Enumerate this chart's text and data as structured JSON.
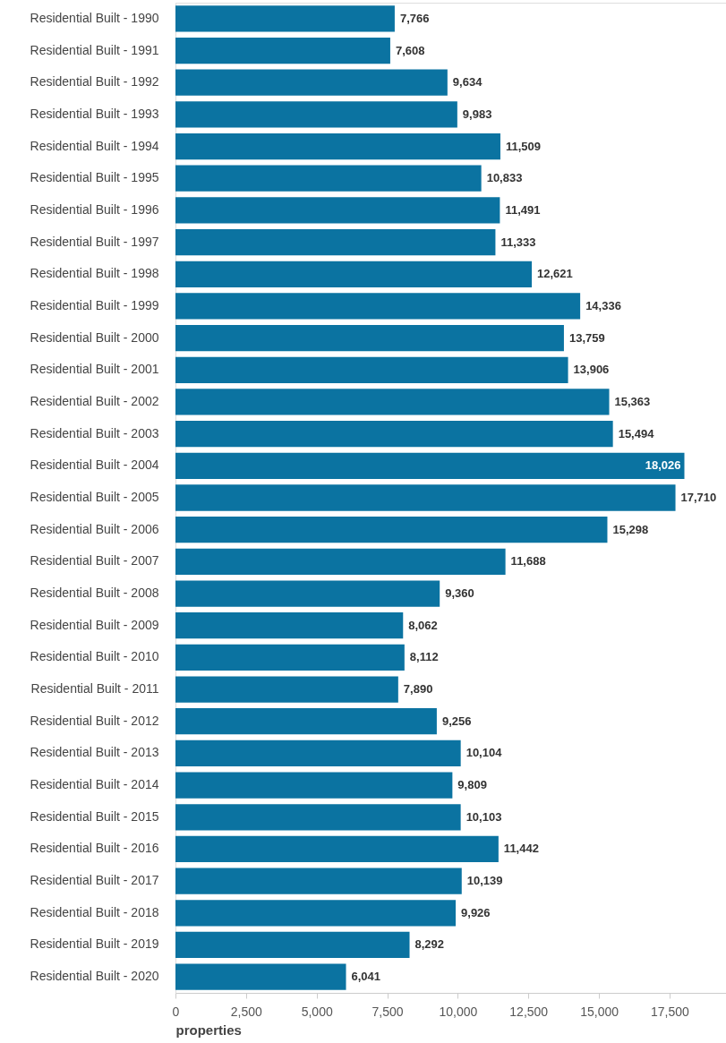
{
  "chart_data": {
    "type": "bar",
    "orientation": "horizontal",
    "xlabel": "properties",
    "color": "#0b73a1",
    "categories": [
      "Residential Built - 1990",
      "Residential Built - 1991",
      "Residential Built - 1992",
      "Residential Built - 1993",
      "Residential Built - 1994",
      "Residential Built - 1995",
      "Residential Built - 1996",
      "Residential Built - 1997",
      "Residential Built - 1998",
      "Residential Built - 1999",
      "Residential Built - 2000",
      "Residential Built - 2001",
      "Residential Built - 2002",
      "Residential Built - 2003",
      "Residential Built - 2004",
      "Residential Built - 2005",
      "Residential Built - 2006",
      "Residential Built - 2007",
      "Residential Built - 2008",
      "Residential Built - 2009",
      "Residential Built - 2010",
      "Residential Built - 2011",
      "Residential Built - 2012",
      "Residential Built - 2013",
      "Residential Built - 2014",
      "Residential Built - 2015",
      "Residential Built - 2016",
      "Residential Built - 2017",
      "Residential Built - 2018",
      "Residential Built - 2019",
      "Residential Built - 2020"
    ],
    "values": [
      7766,
      7608,
      9634,
      9983,
      11509,
      10833,
      11491,
      11333,
      12621,
      14336,
      13759,
      13906,
      15363,
      15494,
      18026,
      17710,
      15298,
      11688,
      9360,
      8062,
      8112,
      7890,
      9256,
      10104,
      9809,
      10103,
      11442,
      10139,
      9926,
      8292,
      6041
    ],
    "value_labels": [
      "7,766",
      "7,608",
      "9,634",
      "9,983",
      "11,509",
      "10,833",
      "11,491",
      "11,333",
      "12,621",
      "14,336",
      "13,759",
      "13,906",
      "15,363",
      "15,494",
      "18,026",
      "17,710",
      "15,298",
      "11,688",
      "9,360",
      "8,062",
      "8,112",
      "7,890",
      "9,256",
      "10,104",
      "9,809",
      "10,103",
      "11,442",
      "10,139",
      "9,926",
      "8,292",
      "6,041"
    ],
    "xlim": [
      0,
      19500
    ],
    "xticks": [
      0,
      {
        "value": 2500,
        "label": "2,500"
      },
      {
        "value": 5000,
        "label": "5,000"
      },
      {
        "value": 7500,
        "label": "7,500"
      },
      {
        "value": 10000,
        "label": "10,000"
      },
      {
        "value": 12500,
        "label": "12,500"
      },
      {
        "value": 15000,
        "label": "15,000"
      },
      {
        "value": 17500,
        "label": "17,500"
      }
    ],
    "grid": false
  }
}
